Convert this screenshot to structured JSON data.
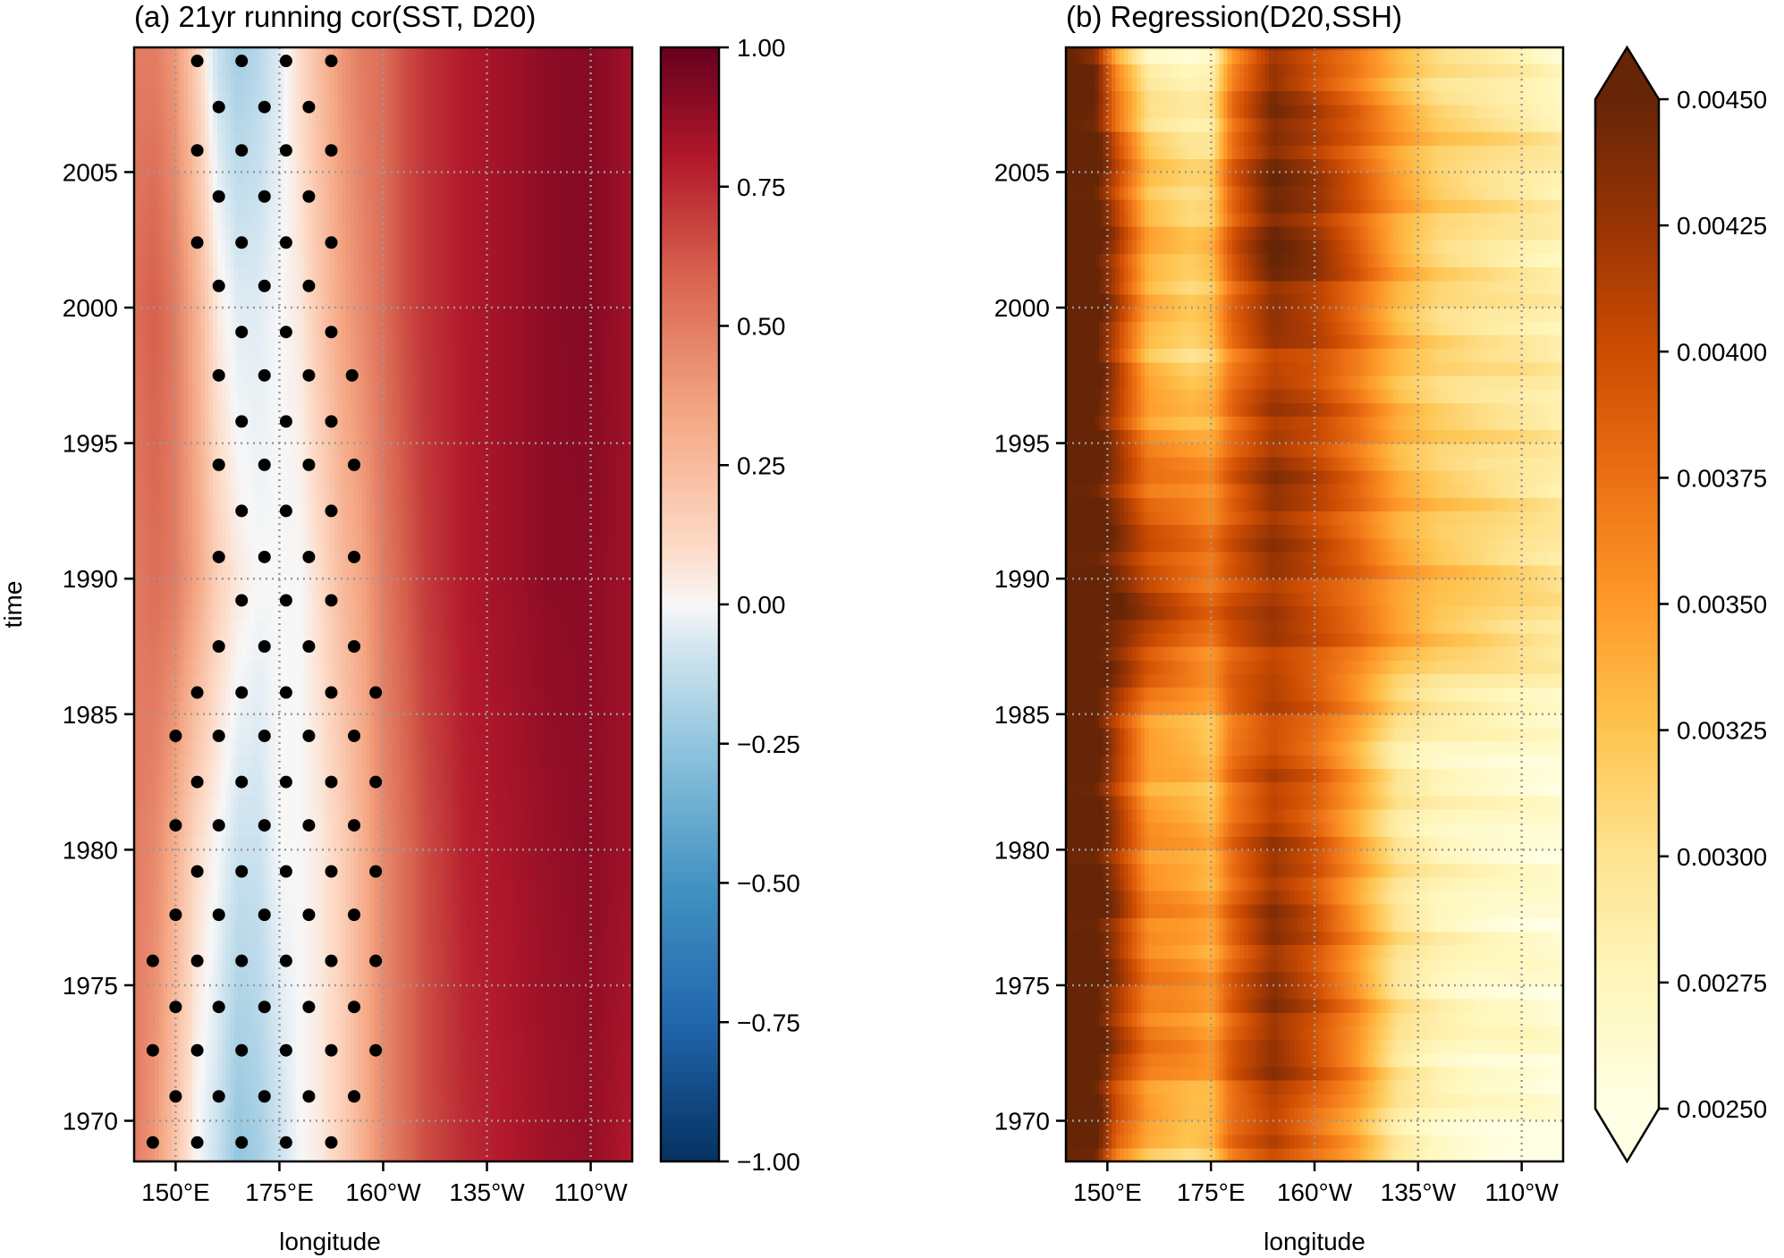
{
  "chart_data": [
    {
      "type": "heatmap",
      "title": "(a) 21yr running cor(SST, D20)",
      "xlabel": "longitude",
      "ylabel": "time",
      "xlim": [
        140,
        260
      ],
      "ylim": [
        1968.5,
        2009.6
      ],
      "xticks": [
        150,
        175,
        200,
        225,
        250
      ],
      "xtick_labels": [
        "150°E",
        "175°E",
        "160°W",
        "135°W",
        "110°W"
      ],
      "yticks": [
        1970,
        1975,
        1980,
        1985,
        1990,
        1995,
        2000,
        2005
      ],
      "ytick_labels": [
        "1970",
        "1975",
        "1980",
        "1985",
        "1990",
        "1995",
        "2000",
        "2005"
      ],
      "grid": true,
      "colormap": "RdBu_r",
      "clim": [
        -1,
        1
      ],
      "colorbar_ticks": [
        1.0,
        0.75,
        0.5,
        0.25,
        0.0,
        -0.25,
        -0.5,
        -0.75,
        -1.0
      ],
      "colorbar_tick_labels": [
        "1.00",
        "0.75",
        "0.50",
        "0.25",
        "0.00",
        "−0.25",
        "−0.50",
        "−0.75",
        "−1.00"
      ],
      "grid_lons": [
        140,
        145,
        150,
        155,
        160,
        165,
        170,
        175,
        180,
        185,
        190,
        195,
        200,
        205,
        210,
        220,
        230,
        240,
        250,
        260
      ],
      "grid_years": [
        1969,
        1980,
        1990,
        2000,
        2009
      ],
      "values": [
        [
          0.5,
          0.4,
          0.2,
          0.0,
          -0.1,
          -0.25,
          -0.2,
          -0.1,
          0.0,
          0.05,
          0.15,
          0.3,
          0.45,
          0.55,
          0.65,
          0.75,
          0.8,
          0.85,
          0.88,
          0.8
        ],
        [
          0.5,
          0.45,
          0.3,
          0.1,
          0.0,
          -0.1,
          -0.1,
          0.0,
          0.0,
          0.05,
          0.15,
          0.3,
          0.45,
          0.55,
          0.65,
          0.78,
          0.82,
          0.87,
          0.9,
          0.85
        ],
        [
          0.5,
          0.55,
          0.5,
          0.35,
          0.15,
          0.05,
          0.0,
          0.0,
          0.0,
          0.1,
          0.25,
          0.35,
          0.5,
          0.6,
          0.7,
          0.8,
          0.85,
          0.9,
          0.9,
          0.85
        ],
        [
          0.55,
          0.6,
          0.5,
          0.3,
          0.05,
          -0.05,
          -0.05,
          0.0,
          0.05,
          0.2,
          0.35,
          0.45,
          0.55,
          0.65,
          0.72,
          0.8,
          0.85,
          0.9,
          0.92,
          0.85
        ],
        [
          0.5,
          0.5,
          0.4,
          0.15,
          -0.1,
          -0.2,
          -0.15,
          -0.05,
          0.1,
          0.25,
          0.4,
          0.5,
          0.55,
          0.65,
          0.72,
          0.8,
          0.85,
          0.9,
          0.92,
          0.85
        ]
      ],
      "significance_stipple": [
        {
          "year": 2009.1,
          "lons": [
            155.2,
            165.9,
            176.6,
            187.5
          ]
        },
        {
          "year": 2007.4,
          "lons": [
            160.4,
            171.4,
            182.1
          ]
        },
        {
          "year": 2005.8,
          "lons": [
            155.2,
            165.9,
            176.6,
            187.5
          ]
        },
        {
          "year": 2004.1,
          "lons": [
            160.4,
            171.4,
            182.1
          ]
        },
        {
          "year": 2002.4,
          "lons": [
            155.2,
            165.9,
            176.6,
            187.5
          ]
        },
        {
          "year": 2000.8,
          "lons": [
            160.4,
            171.4,
            182.1
          ]
        },
        {
          "year": 1999.1,
          "lons": [
            165.9,
            176.6,
            187.5
          ]
        },
        {
          "year": 1997.5,
          "lons": [
            160.4,
            171.4,
            182.1,
            192.5
          ]
        },
        {
          "year": 1995.8,
          "lons": [
            165.9,
            176.6,
            187.5
          ]
        },
        {
          "year": 1994.2,
          "lons": [
            160.4,
            171.4,
            182.1,
            193
          ]
        },
        {
          "year": 1992.5,
          "lons": [
            165.9,
            176.6,
            187.5
          ]
        },
        {
          "year": 1990.8,
          "lons": [
            160.4,
            171.4,
            182.1,
            193
          ]
        },
        {
          "year": 1989.2,
          "lons": [
            165.9,
            176.6,
            187.5
          ]
        },
        {
          "year": 1987.5,
          "lons": [
            160.4,
            171.4,
            182.1,
            193
          ]
        },
        {
          "year": 1985.8,
          "lons": [
            155.2,
            165.9,
            176.6,
            187.5,
            198.2
          ]
        },
        {
          "year": 1984.2,
          "lons": [
            150,
            160.4,
            171.4,
            182.1,
            193
          ]
        },
        {
          "year": 1982.5,
          "lons": [
            155.2,
            165.9,
            176.6,
            187.5,
            198.2
          ]
        },
        {
          "year": 1980.9,
          "lons": [
            150,
            160.4,
            171.4,
            182.1,
            193
          ]
        },
        {
          "year": 1979.2,
          "lons": [
            155.2,
            165.9,
            176.6,
            187.5,
            198.2
          ]
        },
        {
          "year": 1977.6,
          "lons": [
            150,
            160.4,
            171.4,
            182.1,
            193
          ]
        },
        {
          "year": 1975.9,
          "lons": [
            144.5,
            155.2,
            165.9,
            176.6,
            187.5,
            198.2
          ]
        },
        {
          "year": 1974.2,
          "lons": [
            150,
            160.4,
            171.4,
            182.1,
            193
          ]
        },
        {
          "year": 1972.6,
          "lons": [
            144.5,
            155.2,
            165.9,
            176.6,
            187.5,
            198.2
          ]
        },
        {
          "year": 1970.9,
          "lons": [
            150,
            160.4,
            171.4,
            182.1,
            193
          ]
        },
        {
          "year": 1969.2,
          "lons": [
            144.5,
            155.2,
            165.9,
            176.6,
            187.5
          ]
        }
      ]
    },
    {
      "type": "heatmap",
      "title": "(b) Regression(D20,SSH)",
      "xlabel": "longitude",
      "ylabel": "",
      "xlim": [
        140,
        260
      ],
      "ylim": [
        1968.5,
        2009.6
      ],
      "xticks": [
        150,
        175,
        200,
        225,
        250
      ],
      "xtick_labels": [
        "150°E",
        "175°E",
        "160°W",
        "135°W",
        "110°W"
      ],
      "yticks": [
        1970,
        1975,
        1980,
        1985,
        1990,
        1995,
        2000,
        2005
      ],
      "ytick_labels": [
        "1970",
        "1975",
        "1980",
        "1985",
        "1990",
        "1995",
        "2000",
        "2005"
      ],
      "grid": true,
      "colormap": "YlOrBr",
      "clim": [
        0.0025,
        0.0045
      ],
      "colorbar_extend": "both",
      "colorbar_ticks": [
        0.0045,
        0.00425,
        0.004,
        0.00375,
        0.0035,
        0.00325,
        0.003,
        0.00275,
        0.0025
      ],
      "colorbar_tick_labels": [
        "0.00450",
        "0.00425",
        "0.00400",
        "0.00375",
        "0.00350",
        "0.00325",
        "0.00300",
        "0.00275",
        "0.00250"
      ],
      "grid_lons": [
        140,
        147,
        152,
        160,
        170,
        175,
        180,
        190,
        200,
        210,
        220,
        230,
        240,
        250,
        260
      ],
      "grid_years": [
        1969,
        1972.5,
        1978,
        1984,
        1988.5,
        1993,
        1998,
        2002,
        2006,
        2009
      ],
      "values": [
        [
          0.0046,
          0.0046,
          0.0038,
          0.0033,
          0.0031,
          0.0032,
          0.0037,
          0.004,
          0.0037,
          0.0034,
          0.0029,
          0.0027,
          0.0026,
          0.00255,
          0.0025
        ],
        [
          0.0046,
          0.0046,
          0.0042,
          0.0037,
          0.0036,
          0.0035,
          0.0039,
          0.0043,
          0.004,
          0.0036,
          0.003,
          0.0028,
          0.0027,
          0.0027,
          0.0026
        ],
        [
          0.0046,
          0.0046,
          0.0043,
          0.0036,
          0.0035,
          0.0034,
          0.0038,
          0.0043,
          0.004,
          0.0035,
          0.003,
          0.0028,
          0.0027,
          0.00265,
          0.0026
        ],
        [
          0.0046,
          0.0046,
          0.0041,
          0.0034,
          0.0033,
          0.0032,
          0.0037,
          0.004,
          0.0038,
          0.0034,
          0.0029,
          0.00275,
          0.0027,
          0.00265,
          0.0026
        ],
        [
          0.0046,
          0.0046,
          0.0045,
          0.0042,
          0.0039,
          0.0038,
          0.004,
          0.0042,
          0.004,
          0.0038,
          0.0035,
          0.0033,
          0.0032,
          0.0031,
          0.003
        ],
        [
          0.0046,
          0.0046,
          0.0043,
          0.0038,
          0.0037,
          0.0036,
          0.0039,
          0.0043,
          0.0041,
          0.0038,
          0.0034,
          0.0032,
          0.0031,
          0.003,
          0.0029
        ],
        [
          0.0046,
          0.0046,
          0.0041,
          0.0033,
          0.0031,
          0.0032,
          0.0037,
          0.0041,
          0.004,
          0.0037,
          0.0033,
          0.0031,
          0.003,
          0.00295,
          0.00285
        ],
        [
          0.0046,
          0.0046,
          0.0042,
          0.0034,
          0.0032,
          0.0033,
          0.0039,
          0.0045,
          0.0043,
          0.0039,
          0.0034,
          0.0031,
          0.003,
          0.0029,
          0.0028
        ],
        [
          0.0046,
          0.0046,
          0.004,
          0.0032,
          0.003,
          0.003,
          0.0038,
          0.0044,
          0.0042,
          0.0039,
          0.0035,
          0.0032,
          0.0031,
          0.003,
          0.0029
        ],
        [
          0.0046,
          0.0044,
          0.0035,
          0.0028,
          0.0027,
          0.0028,
          0.0036,
          0.0043,
          0.004,
          0.0037,
          0.0033,
          0.003,
          0.0029,
          0.0028,
          0.0026
        ]
      ]
    }
  ]
}
